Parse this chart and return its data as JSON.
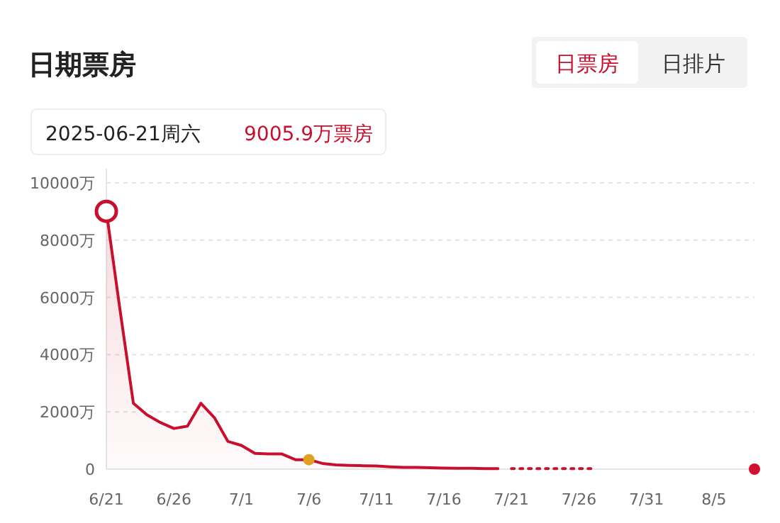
{
  "chart_data": {
    "type": "area",
    "title": "日期票房",
    "annotations": [
      "日票房",
      "日排片",
      "2025-06-21周六",
      "9005.9万票房"
    ],
    "xlim": [
      "2025-06-21",
      "2025-08-08"
    ],
    "xticks": [
      {
        "value": "2025-06-21",
        "label": "6/21"
      },
      {
        "value": "2025-06-26",
        "label": "6/26"
      },
      {
        "value": "2025-07-01",
        "label": "7/1"
      },
      {
        "value": "2025-07-06",
        "label": "7/6"
      },
      {
        "value": "2025-07-11",
        "label": "7/11"
      },
      {
        "value": "2025-07-16",
        "label": "7/16"
      },
      {
        "value": "2025-07-21",
        "label": "7/21"
      },
      {
        "value": "2025-07-26",
        "label": "7/26"
      },
      {
        "value": "2025-07-31",
        "label": "7/31"
      },
      {
        "value": "2025-08-05",
        "label": "8/5"
      }
    ],
    "ylim": [
      0,
      10000
    ],
    "yticks": [
      0,
      {
        "value": 2000,
        "label": "2000万"
      },
      {
        "value": 4000,
        "label": "4000万"
      },
      {
        "value": 6000,
        "label": "6000万"
      },
      {
        "value": 8000,
        "label": "8000万"
      },
      {
        "value": 10000,
        "label": "10000万"
      }
    ],
    "grid": "y",
    "series": [
      {
        "color": "#c8102e",
        "x": [
          "2025-06-21",
          "2025-06-22",
          "2025-06-23",
          "2025-06-24",
          "2025-06-25",
          "2025-06-26",
          "2025-06-27",
          "2025-06-28",
          "2025-06-29",
          "2025-06-30",
          "2025-07-01",
          "2025-07-02",
          "2025-07-03",
          "2025-07-04",
          "2025-07-05",
          "2025-07-06",
          "2025-07-07",
          "2025-07-08",
          "2025-07-09",
          "2025-07-10",
          "2025-07-11",
          "2025-07-12",
          "2025-07-13",
          "2025-07-14",
          "2025-07-15",
          "2025-07-16",
          "2025-07-17",
          "2025-07-18",
          "2025-07-19",
          "2025-07-20"
        ],
        "values": [
          9005.9,
          5600,
          2300,
          1900,
          1630,
          1420,
          1500,
          2300,
          1800,
          970,
          830,
          550,
          530,
          530,
          330,
          330,
          200,
          150,
          130,
          120,
          110,
          80,
          60,
          60,
          50,
          40,
          30,
          30,
          20,
          20
        ]
      },
      {
        "type": "line",
        "line_style": "dotted",
        "color": "#c8102e",
        "x": [
          "2025-07-21",
          "2025-07-22",
          "2025-07-23",
          "2025-07-24",
          "2025-07-25",
          "2025-07-26",
          "2025-07-27"
        ],
        "values": [
          20,
          20,
          20,
          20,
          20,
          20,
          20
        ]
      },
      {
        "type": "scatter",
        "color": "#c8102e",
        "x": [
          "2025-06-21"
        ],
        "values": [
          9005.9
        ]
      },
      {
        "type": "scatter",
        "color": "#e0a020",
        "x": [
          "2025-07-06"
        ],
        "values": [
          330
        ]
      },
      {
        "type": "scatter",
        "color": "#d0102e",
        "x": [
          "2025-08-08"
        ],
        "values": [
          0
        ]
      }
    ]
  }
}
